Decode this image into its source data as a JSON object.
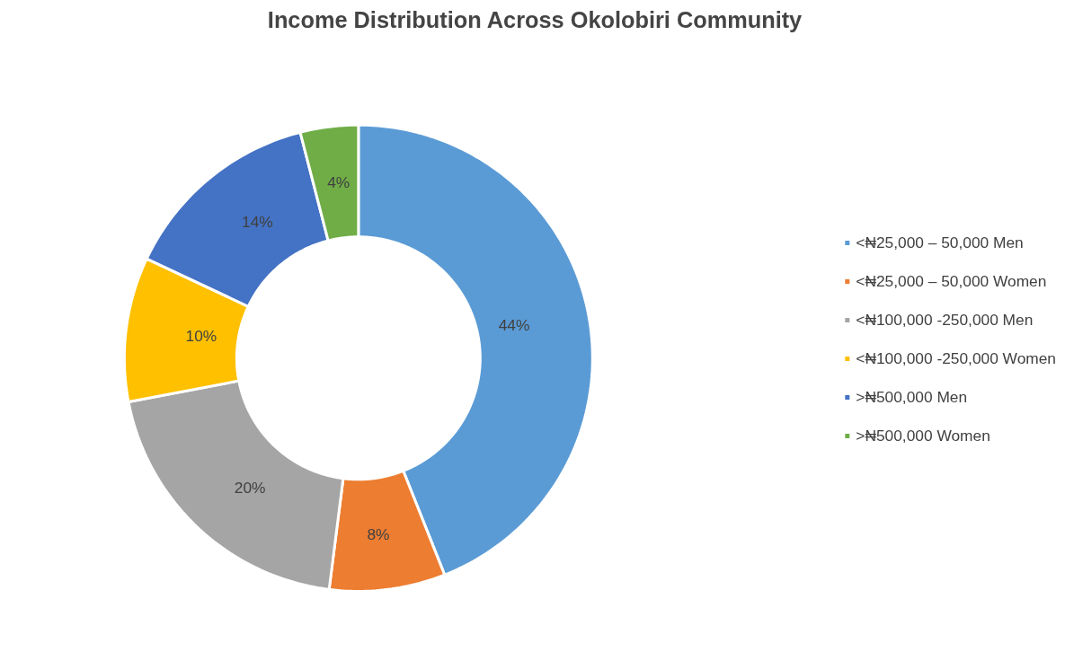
{
  "chart_data": {
    "type": "donut",
    "title": "Income Distribution Across Okolobiri Community",
    "categories": [
      "<₦25,000 – 50,000 Men",
      "<₦25,000 – 50,000 Women",
      "<₦100,000 -250,000 Men",
      "<₦100,000 -250,000 Women",
      ">₦500,000 Men",
      ">₦500,000 Women"
    ],
    "values": [
      44,
      8,
      20,
      10,
      14,
      4
    ],
    "colors": [
      "#5b9bd5",
      "#ed7d31",
      "#a5a5a5",
      "#ffc000",
      "#4472c4",
      "#70ad47"
    ],
    "value_labels": [
      "44%",
      "8%",
      "20%",
      "10%",
      "14%",
      "4%"
    ],
    "legend": "right"
  }
}
